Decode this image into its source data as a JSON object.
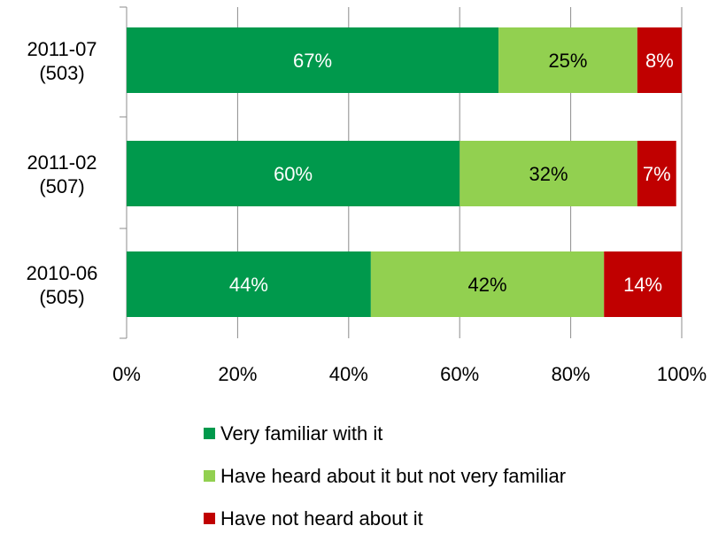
{
  "chart_data": {
    "type": "bar",
    "orientation": "horizontal",
    "stacked": true,
    "categories": [
      {
        "label_line1": "2011-07",
        "label_line2": "(503)"
      },
      {
        "label_line1": "2011-02",
        "label_line2": "(507)"
      },
      {
        "label_line1": "2010-06",
        "label_line2": "(505)"
      }
    ],
    "series": [
      {
        "name": "Very familiar with it",
        "color": "#00994C",
        "label_color": "#ffffff",
        "values": [
          67,
          60,
          44
        ],
        "labels": [
          "67%",
          "60%",
          "44%"
        ]
      },
      {
        "name": "Have heard about it but not very familiar",
        "color": "#92D050",
        "label_color": "#000000",
        "values": [
          25,
          32,
          42
        ],
        "labels": [
          "25%",
          "32%",
          "42%"
        ]
      },
      {
        "name": "Have not heard about it",
        "color": "#C00000",
        "label_color": "#ffffff",
        "values": [
          8,
          7,
          14
        ],
        "labels": [
          "8%",
          "7%",
          "14%"
        ]
      }
    ],
    "x_ticks": [
      "0%",
      "20%",
      "40%",
      "60%",
      "80%",
      "100%"
    ],
    "xlim": [
      0,
      100
    ],
    "legend_position": "bottom",
    "grid": true
  }
}
